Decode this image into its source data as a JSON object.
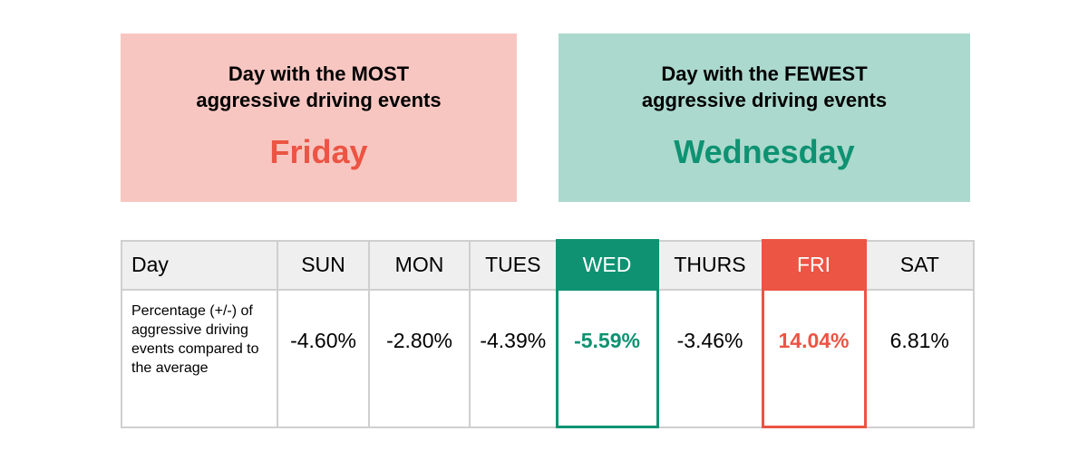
{
  "most_card": {
    "heading_line1": "Day with the MOST",
    "heading_line2": "aggressive driving events",
    "day": "Friday",
    "background": "#f8c6c1",
    "accent": "#ec5443"
  },
  "fewest_card": {
    "heading_line1": "Day with the FEWEST",
    "heading_line2": "aggressive driving events",
    "day": "Wednesday",
    "background": "#abd9cd",
    "accent": "#0e9272"
  },
  "table": {
    "corner_label": "Day",
    "row_label": "Percentage (+/-) of aggressive driving events compared to the average",
    "columns": [
      {
        "day": "SUN",
        "value": "-4.60%"
      },
      {
        "day": "MON",
        "value": "-2.80%"
      },
      {
        "day": "TUES",
        "value": "-4.39%"
      },
      {
        "day": "WED",
        "value": "-5.59%"
      },
      {
        "day": "THURS",
        "value": "-3.46%"
      },
      {
        "day": "FRI",
        "value": "14.04%"
      },
      {
        "day": "SAT",
        "value": "6.81%"
      }
    ]
  }
}
